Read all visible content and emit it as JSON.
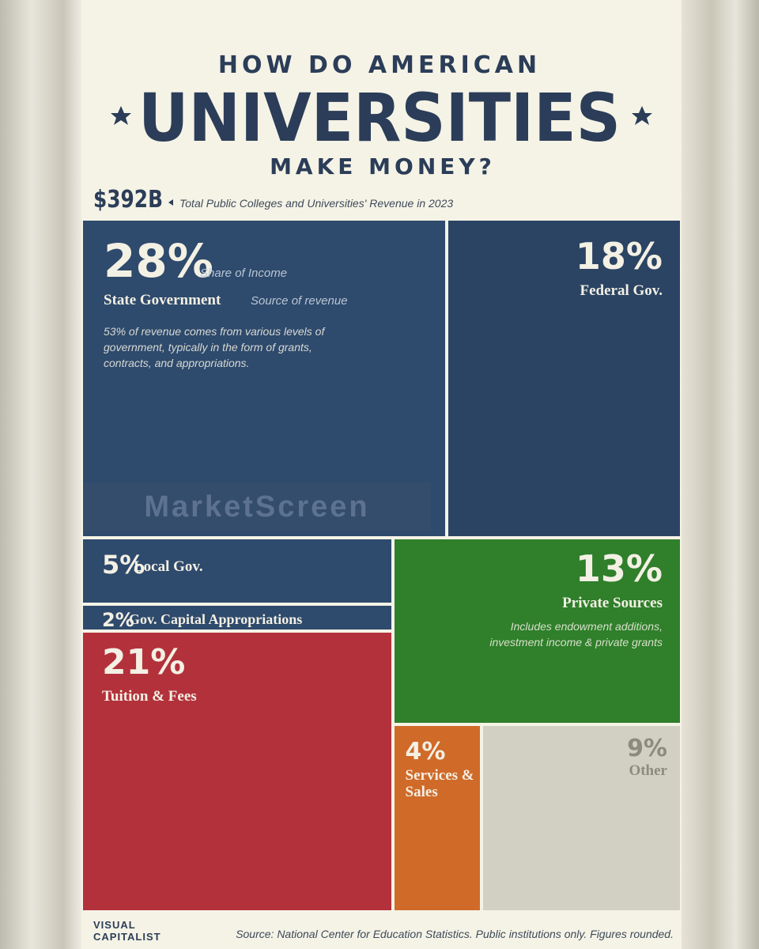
{
  "header": {
    "line1": "HOW DO AMERICAN",
    "line2": "UNIVERSITIES",
    "line3": "MAKE MONEY?",
    "total": "$392B",
    "total_note": "Total Public Colleges and Universities' Revenue in 2023"
  },
  "chart_data": {
    "type": "treemap",
    "categories": [
      "State Government",
      "Federal Gov.",
      "Local Gov.",
      "Gov. Capital Appropriations",
      "Tuition & Fees",
      "Private Sources",
      "Services & Sales",
      "Other"
    ],
    "values": [
      28,
      18,
      5,
      2,
      21,
      13,
      4,
      9
    ],
    "value_labels": [
      "28%",
      "18%",
      "5%",
      "2%",
      "21%",
      "13%",
      "4%",
      "9%"
    ],
    "colors": [
      "#2e4a6c",
      "#2b4464",
      "#2e4a6c",
      "#2e4a6c",
      "#b3313b",
      "#2f7f2b",
      "#d06a29",
      "#d2d0c2"
    ],
    "annotations": {
      "share": "Share of Income",
      "source": "Source of revenue",
      "state_note": "53% of revenue comes from various levels of government, typically in the form of grants, contracts, and appropriations.",
      "private_note": "Includes endowment additions, investment income & private grants"
    }
  },
  "watermark": "MarketScreen",
  "footer": {
    "logo": "VISUAL CAPITALIST",
    "source": "Source: National Center for Education Statistics. Public institutions only. Figures rounded."
  }
}
